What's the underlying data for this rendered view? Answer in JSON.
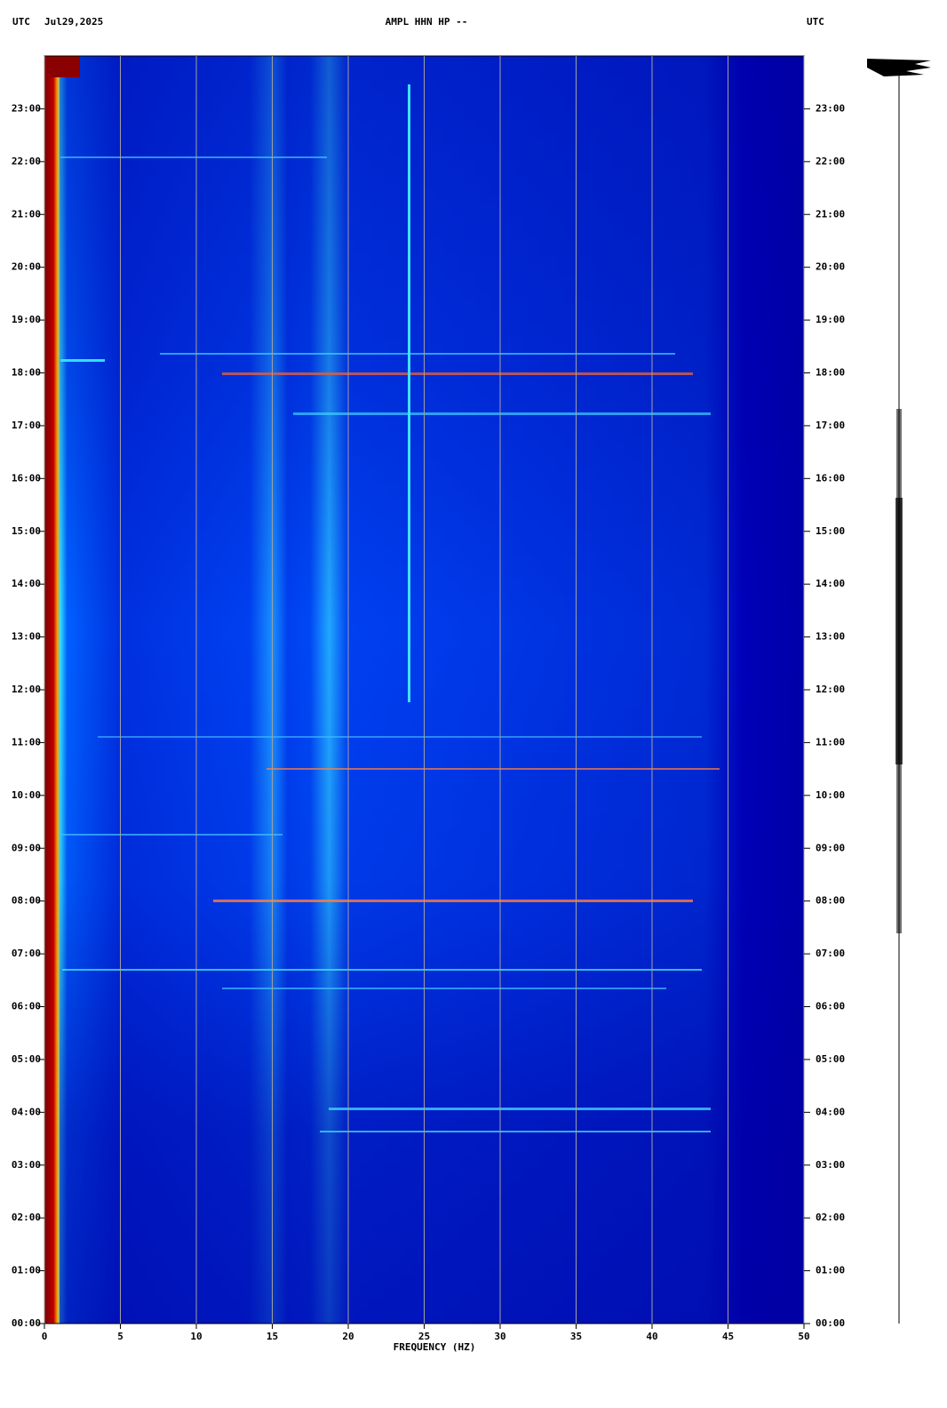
{
  "chart_data": {
    "type": "spectrogram",
    "title": "AMPL HHN HP --",
    "time_zone": "UTC",
    "date": "Jul29,2025",
    "x_label": "FREQUENCY (HZ)",
    "xlim": [
      0,
      50
    ],
    "xticks": [
      0,
      5,
      10,
      15,
      20,
      25,
      30,
      35,
      40,
      45,
      50
    ],
    "ylim": [
      0,
      24
    ],
    "yticks": [
      {
        "value": 0,
        "label": "00:00"
      },
      {
        "value": 1,
        "label": "01:00"
      },
      {
        "value": 2,
        "label": "02:00"
      },
      {
        "value": 3,
        "label": "03:00"
      },
      {
        "value": 4,
        "label": "04:00"
      },
      {
        "value": 5,
        "label": "05:00"
      },
      {
        "value": 6,
        "label": "06:00"
      },
      {
        "value": 7,
        "label": "07:00"
      },
      {
        "value": 8,
        "label": "08:00"
      },
      {
        "value": 9,
        "label": "09:00"
      },
      {
        "value": 10,
        "label": "10:00"
      },
      {
        "value": 11,
        "label": "11:00"
      },
      {
        "value": 12,
        "label": "12:00"
      },
      {
        "value": 13,
        "label": "13:00"
      },
      {
        "value": 14,
        "label": "14:00"
      },
      {
        "value": 15,
        "label": "15:00"
      },
      {
        "value": 16,
        "label": "16:00"
      },
      {
        "value": 17,
        "label": "17:00"
      },
      {
        "value": 18,
        "label": "18:00"
      },
      {
        "value": 19,
        "label": "19:00"
      },
      {
        "value": 20,
        "label": "20:00"
      },
      {
        "value": 21,
        "label": "21:00"
      },
      {
        "value": 22,
        "label": "22:00"
      },
      {
        "value": 23,
        "label": "23:00"
      }
    ],
    "grid": true
  }
}
